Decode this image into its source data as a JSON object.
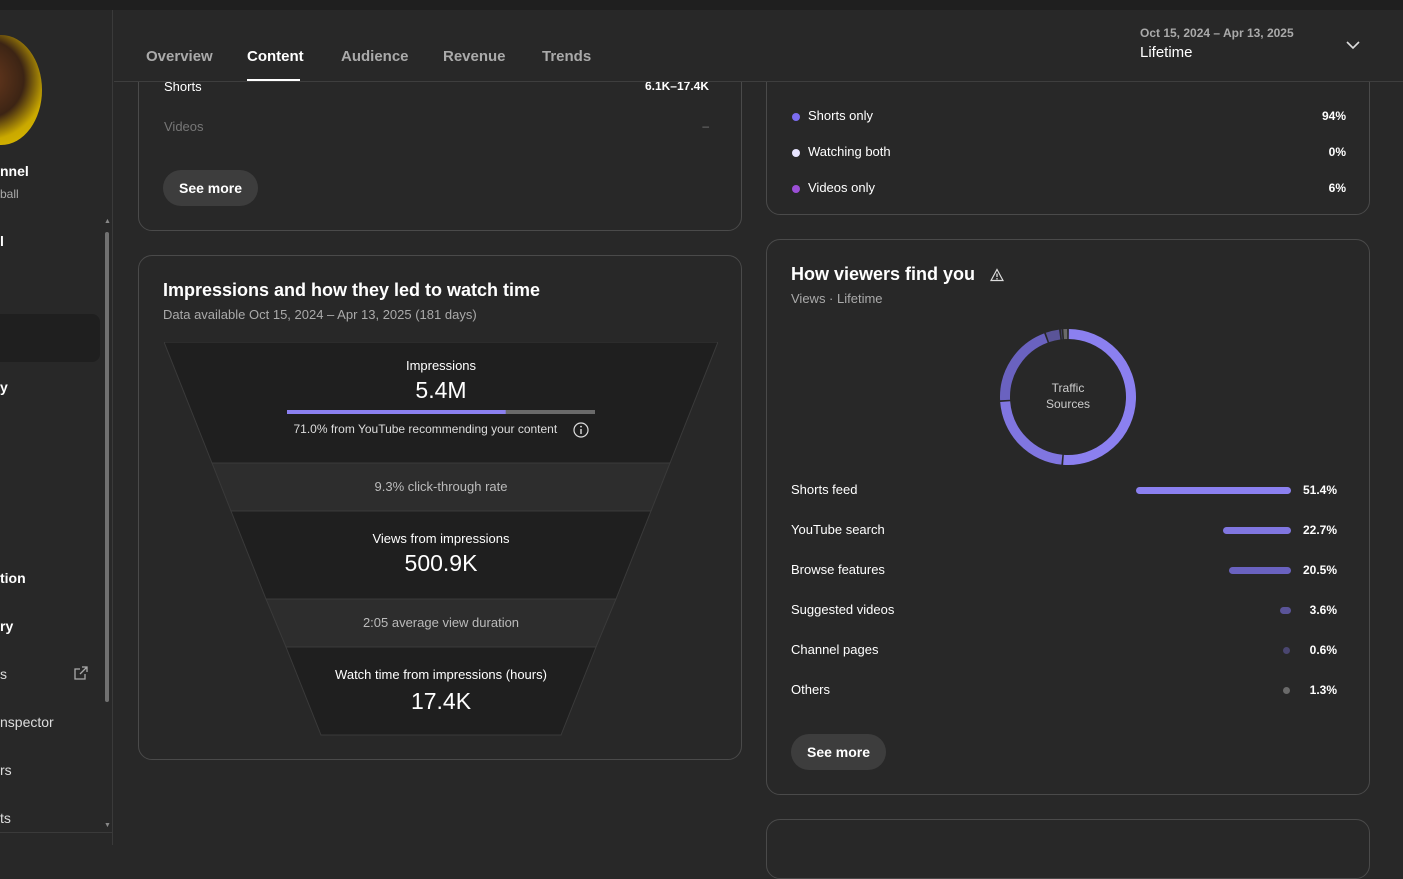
{
  "sidebar": {
    "channel_name_fragment": "nnel",
    "channel_sub_fragment": "ball",
    "items": [
      {
        "label": "l"
      },
      {
        "label": "y"
      },
      {
        "label": "tion"
      },
      {
        "label": "ry"
      },
      {
        "label": "s"
      },
      {
        "label": "nspector"
      },
      {
        "label": "rs"
      },
      {
        "label": "ts"
      }
    ]
  },
  "tabs": [
    {
      "label": "Overview"
    },
    {
      "label": "Content"
    },
    {
      "label": "Audience"
    },
    {
      "label": "Revenue"
    },
    {
      "label": "Trends"
    }
  ],
  "date_picker": {
    "range": "Oct 15, 2024 – Apr 13, 2025",
    "label": "Lifetime"
  },
  "top_left_card": {
    "rows": [
      {
        "label": "Shorts",
        "value": "6.1K–17.4K"
      },
      {
        "label": "Videos",
        "value": "–"
      }
    ],
    "see_more": "See more"
  },
  "top_right_card": {
    "rows": [
      {
        "label": "Shorts only",
        "value": "94%",
        "color": "#7b6cf0"
      },
      {
        "label": "Watching both",
        "value": "0%",
        "color": "#e8e4ff"
      },
      {
        "label": "Videos only",
        "value": "6%",
        "color": "#9b4fd6"
      }
    ]
  },
  "impressions_card": {
    "title": "Impressions and how they led to watch time",
    "subtitle": "Data available Oct 15, 2024 – Apr 13, 2025 (181 days)",
    "impressions_label": "Impressions",
    "impressions_value": "5.4M",
    "recommend_fraction": 0.71,
    "recommend_text": "71.0% from YouTube recommending your content",
    "ctr_text": "9.3% click-through rate",
    "views_label": "Views from impressions",
    "views_value": "500.9K",
    "avg_duration_text": "2:05 average view duration",
    "watch_label": "Watch time from impressions (hours)",
    "watch_value": "17.4K"
  },
  "traffic_card": {
    "title": "How viewers find you",
    "subtitle": "Views · Lifetime",
    "donut_label_1": "Traffic",
    "donut_label_2": "Sources",
    "sources": [
      {
        "label": "Shorts feed",
        "value": "51.4%",
        "pct": 51.4,
        "color": "#8b80f0"
      },
      {
        "label": "YouTube search",
        "value": "22.7%",
        "pct": 22.7,
        "color": "#8076e0"
      },
      {
        "label": "Browse features",
        "value": "20.5%",
        "pct": 20.5,
        "color": "#6a62c0"
      },
      {
        "label": "Suggested videos",
        "value": "3.6%",
        "pct": 3.6,
        "color": "#5a5498"
      },
      {
        "label": "Channel pages",
        "value": "0.6%",
        "pct": 0.6,
        "color": "#4a4670"
      },
      {
        "label": "Others",
        "value": "1.3%",
        "pct": 1.3,
        "color": "#6a6a6a"
      }
    ],
    "see_more": "See more"
  }
}
